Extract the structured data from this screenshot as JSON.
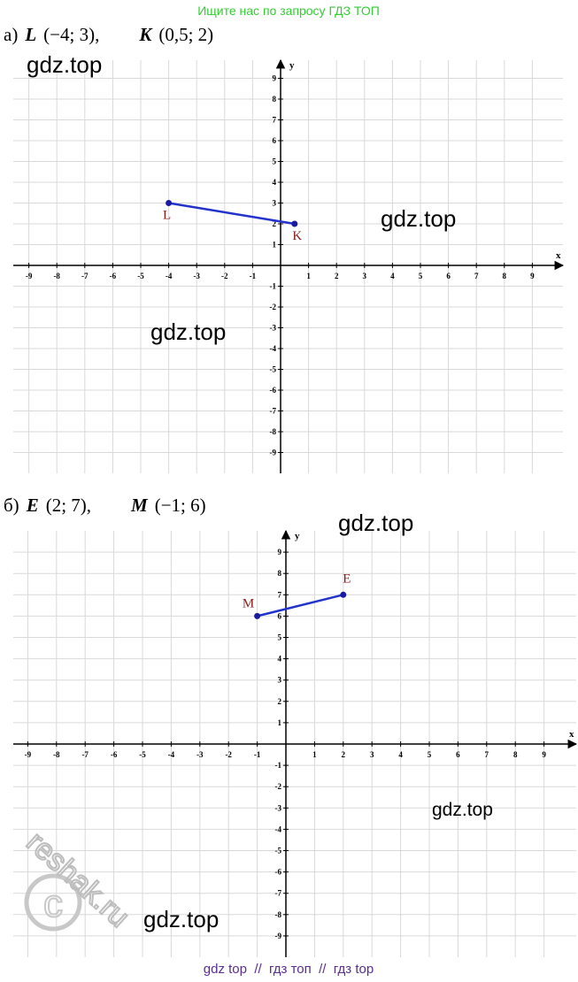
{
  "banner": "Ищите нас по запросу ГДЗ ТОП",
  "plots": [
    {
      "prefix": "а)",
      "x_label": "x",
      "y_label": "y",
      "xticks": [
        -9,
        -8,
        -7,
        -6,
        -5,
        -4,
        -3,
        -2,
        -1,
        1,
        2,
        3,
        4,
        5,
        6,
        7,
        8,
        9
      ],
      "yticks": [
        -9,
        -8,
        -7,
        -6,
        -5,
        -4,
        -3,
        -2,
        -1,
        1,
        2,
        3,
        4,
        5,
        6,
        7,
        8,
        9
      ],
      "points": [
        {
          "name": "L",
          "coords": "(−4; 3),",
          "x": -4,
          "y": 3
        },
        {
          "name": "K",
          "coords": "(0,5; 2)",
          "x": 0.5,
          "y": 2
        }
      ]
    },
    {
      "prefix": "б)",
      "x_label": "x",
      "y_label": "y",
      "xticks": [
        -9,
        -8,
        -7,
        -6,
        -5,
        -4,
        -3,
        -2,
        -1,
        1,
        2,
        3,
        4,
        5,
        6,
        7,
        8,
        9
      ],
      "yticks": [
        -9,
        -8,
        -7,
        -6,
        -5,
        -4,
        -3,
        -2,
        -1,
        1,
        2,
        3,
        4,
        5,
        6,
        7,
        8,
        9
      ],
      "points": [
        {
          "name": "E",
          "coords": "(2; 7),",
          "x": 2,
          "y": 7
        },
        {
          "name": "M",
          "coords": "(−1; 6)",
          "x": -1,
          "y": 6
        }
      ]
    }
  ],
  "watermarks": [
    "gdz.top",
    "gdz.top",
    "gdz.top",
    "gdz.top",
    "gdz.top",
    "gdz.top"
  ],
  "stamp": "reshak.ru",
  "footer": "gdz top  //  гдз топ  //  гдз top"
}
